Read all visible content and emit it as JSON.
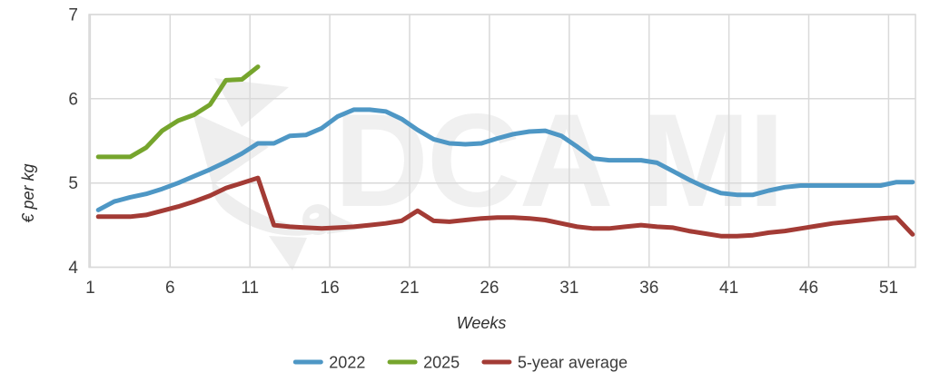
{
  "watermark": {
    "text": "DCA MI",
    "logo": "bird-logo"
  },
  "chart_data": {
    "type": "line",
    "title": "",
    "xlabel": "Weeks",
    "ylabel": "€ per kg",
    "xticks": [
      1,
      6,
      11,
      16,
      21,
      26,
      31,
      36,
      41,
      46,
      51
    ],
    "yticks": [
      4,
      5,
      6,
      7
    ],
    "xlim": [
      1,
      52
    ],
    "ylim": [
      4,
      7
    ],
    "grid": true,
    "legend_position": "bottom",
    "colors": {
      "grid": "#d9d9d9",
      "axis_text": "#3d3d3d",
      "watermark": "#f0f0f0",
      "background": "#ffffff"
    },
    "series": [
      {
        "name": "2022",
        "color": "#4e97c5",
        "start_week": 1,
        "values": [
          4.68,
          4.78,
          4.83,
          4.87,
          4.93,
          5.0,
          5.08,
          5.16,
          5.25,
          5.35,
          5.47,
          5.47,
          5.56,
          5.57,
          5.65,
          5.79,
          5.87,
          5.87,
          5.85,
          5.76,
          5.63,
          5.52,
          5.47,
          5.46,
          5.47,
          5.53,
          5.58,
          5.61,
          5.62,
          5.56,
          5.43,
          5.29,
          5.27,
          5.27,
          5.27,
          5.24,
          5.14,
          5.04,
          4.95,
          4.88,
          4.86,
          4.86,
          4.91,
          4.95,
          4.97,
          4.97,
          4.97,
          4.97,
          4.97,
          4.97,
          5.01,
          5.01
        ]
      },
      {
        "name": "2025",
        "color": "#76a52d",
        "start_week": 1,
        "values": [
          5.31,
          5.31,
          5.31,
          5.42,
          5.62,
          5.74,
          5.81,
          5.93,
          6.22,
          6.23,
          6.38
        ]
      },
      {
        "name": "5-year average",
        "color": "#a33b35",
        "start_week": 1,
        "values": [
          4.6,
          4.6,
          4.6,
          4.62,
          4.67,
          4.72,
          4.78,
          4.85,
          4.94,
          5.0,
          5.06,
          4.5,
          4.48,
          4.47,
          4.46,
          4.47,
          4.48,
          4.5,
          4.52,
          4.55,
          4.67,
          4.55,
          4.54,
          4.56,
          4.58,
          4.59,
          4.59,
          4.58,
          4.56,
          4.52,
          4.48,
          4.46,
          4.46,
          4.48,
          4.5,
          4.48,
          4.47,
          4.43,
          4.4,
          4.37,
          4.37,
          4.38,
          4.41,
          4.43,
          4.46,
          4.49,
          4.52,
          4.54,
          4.56,
          4.58,
          4.59,
          4.39
        ]
      }
    ]
  }
}
